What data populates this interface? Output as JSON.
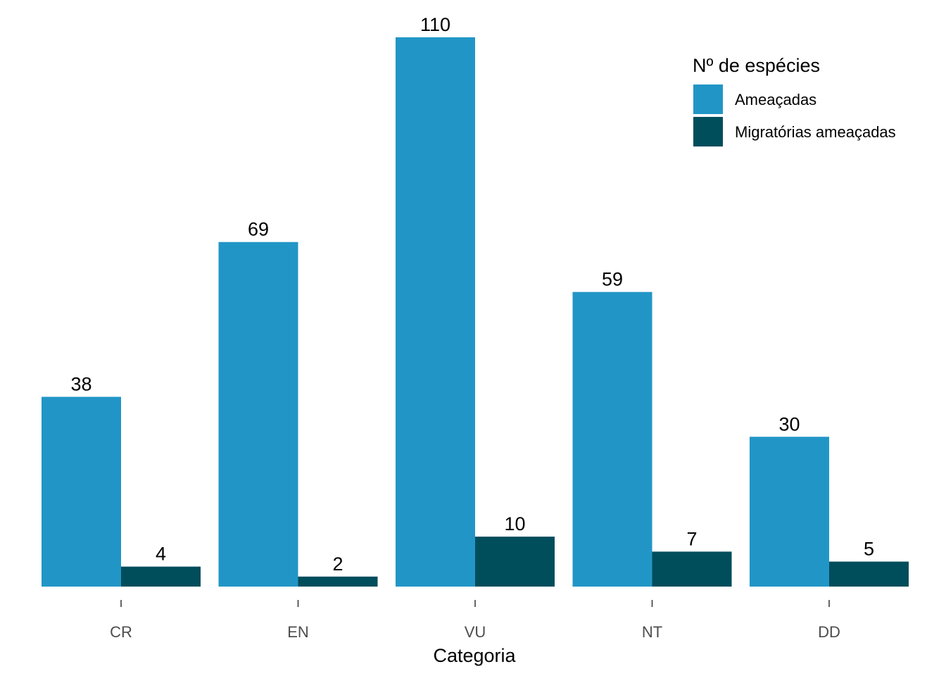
{
  "chart_data": {
    "type": "bar",
    "title": "",
    "xlabel": "Categoria",
    "ylabel": "",
    "categories": [
      "CR",
      "EN",
      "VU",
      "NT",
      "DD"
    ],
    "series": [
      {
        "name": "Ameaçadas",
        "values": [
          38,
          69,
          110,
          59,
          30
        ],
        "color": "#2196C6"
      },
      {
        "name": "Migratórias ameaçadas",
        "values": [
          4,
          2,
          10,
          7,
          5
        ],
        "color": "#004D5C"
      }
    ],
    "ylim": [
      0,
      110
    ],
    "grid": false,
    "data_labels": true,
    "legend": {
      "title": "Nº de espécies",
      "placement": "top-right"
    }
  }
}
